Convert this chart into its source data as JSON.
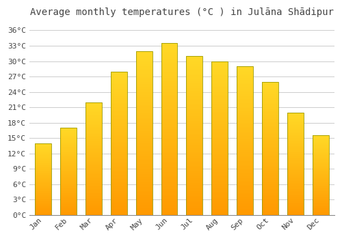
{
  "title": "Average monthly temperatures (°C ) in Julāna Shādipur",
  "months": [
    "Jan",
    "Feb",
    "Mar",
    "Apr",
    "May",
    "Jun",
    "Jul",
    "Aug",
    "Sep",
    "Oct",
    "Nov",
    "Dec"
  ],
  "values": [
    14,
    17,
    22,
    28,
    32,
    33.5,
    31,
    30,
    29,
    26,
    20,
    15.5
  ],
  "bar_color_top": "#FFB700",
  "bar_color_bottom": "#FF9900",
  "bar_color_mid": "#FFCC00",
  "bar_edge_color": "#888800",
  "background_color": "#FFFFFF",
  "grid_color": "#CCCCCC",
  "text_color": "#444444",
  "ytick_labels": [
    "0°C",
    "3°C",
    "6°C",
    "9°C",
    "12°C",
    "15°C",
    "18°C",
    "21°C",
    "24°C",
    "27°C",
    "30°C",
    "33°C",
    "36°C"
  ],
  "ytick_values": [
    0,
    3,
    6,
    9,
    12,
    15,
    18,
    21,
    24,
    27,
    30,
    33,
    36
  ],
  "ylim": [
    0,
    37.5
  ],
  "title_fontsize": 10,
  "tick_fontsize": 8
}
